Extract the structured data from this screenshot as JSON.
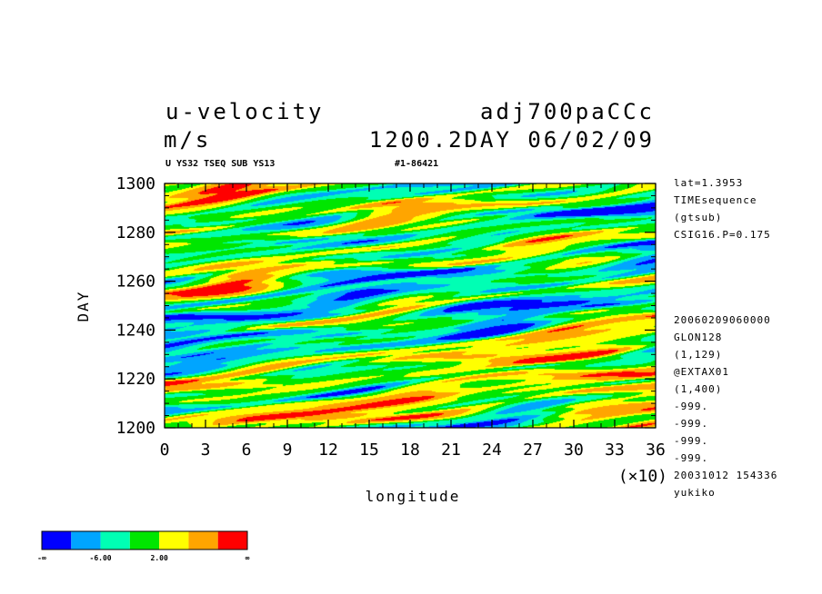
{
  "header": {
    "title": "u-velocity",
    "run_id": "adj700paCCc",
    "units": "m/s",
    "time_label": "1200.2DAY 06/02/09",
    "sub_left": "U YS32 TSEQ SUB YS13",
    "sub_right": "#1-86421"
  },
  "side_info": {
    "top": [
      "lat=1.3953",
      "TIMEsequence",
      "(gtsub)",
      "CSIG16.P=0.175"
    ],
    "bottom": [
      "20060209060000",
      "GLON128",
      "(1,129)",
      "@EXTAX01",
      "(1,400)",
      "-999.",
      "-999.",
      "-999.",
      "-999.",
      "20031012 154336",
      "yukiko"
    ]
  },
  "colorbar": {
    "colors": [
      "#0000ff",
      "#00a5ff",
      "#00ffb4",
      "#00e600",
      "#ffff00",
      "#ffa500",
      "#ff0000"
    ],
    "labels": [
      "-∞",
      "-6.00",
      "2.00",
      "∞"
    ]
  },
  "chart_data": {
    "type": "heatmap",
    "title": "u-velocity",
    "xlabel": "longitude",
    "ylabel": "DAY",
    "x_multiplier_label": "(×10)",
    "xlim": [
      0,
      36
    ],
    "ylim": [
      1200,
      1300
    ],
    "x_ticks": [
      0,
      3,
      6,
      9,
      12,
      15,
      18,
      21,
      24,
      27,
      30,
      33,
      36
    ],
    "y_ticks": [
      1200,
      1220,
      1240,
      1260,
      1280,
      1300
    ],
    "x_tick_labels": [
      "0",
      "3",
      "6",
      "9",
      "12",
      "15",
      "18",
      "21",
      "24",
      "27",
      "30",
      "33",
      "36"
    ],
    "y_tick_labels": [
      "1200",
      "1220",
      "1240",
      "1260",
      "1280",
      "1300"
    ],
    "legend": "bottom-left colorbar",
    "color_levels": [
      "-∞",
      "-6.00",
      "2.00",
      "∞"
    ],
    "grid": false
  }
}
